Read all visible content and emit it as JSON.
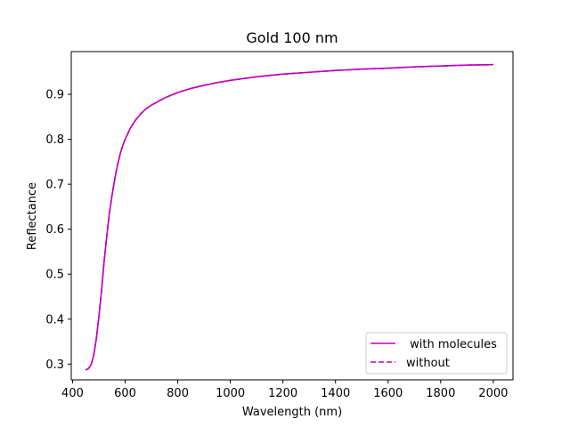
{
  "chart_data": {
    "type": "line",
    "title": "Gold 100 nm",
    "xlabel": "Wavelength (nm)",
    "ylabel": "Reflectance",
    "xlim": [
      395,
      2075
    ],
    "ylim": [
      0.265,
      0.995
    ],
    "xticks": [
      400,
      600,
      800,
      1000,
      1200,
      1400,
      1600,
      1800,
      2000
    ],
    "yticks": [
      0.3,
      0.4,
      0.5,
      0.6,
      0.7,
      0.8,
      0.9
    ],
    "grid": false,
    "legend_position": "lower-right",
    "series": [
      {
        "name": " with molecules",
        "style": "solid",
        "color": "#bf00bf",
        "x": [
          450,
          460,
          470,
          480,
          490,
          500,
          510,
          520,
          530,
          540,
          550,
          560,
          570,
          580,
          590,
          600,
          620,
          640,
          660,
          680,
          700,
          750,
          800,
          850,
          900,
          950,
          1000,
          1100,
          1200,
          1300,
          1400,
          1500,
          1600,
          1700,
          1800,
          1900,
          2000
        ],
        "y": [
          0.287,
          0.29,
          0.298,
          0.318,
          0.355,
          0.405,
          0.462,
          0.528,
          0.585,
          0.635,
          0.675,
          0.71,
          0.74,
          0.765,
          0.785,
          0.8,
          0.825,
          0.843,
          0.857,
          0.868,
          0.876,
          0.892,
          0.904,
          0.913,
          0.92,
          0.926,
          0.931,
          0.939,
          0.945,
          0.949,
          0.953,
          0.956,
          0.958,
          0.961,
          0.963,
          0.965,
          0.966
        ]
      },
      {
        "name": "without",
        "style": "dashed",
        "color": "#bf00bf",
        "x": [
          450,
          460,
          470,
          480,
          490,
          500,
          510,
          520,
          530,
          540,
          550,
          560,
          570,
          580,
          590,
          600,
          620,
          640,
          660,
          680,
          700,
          750,
          800,
          850,
          900,
          950,
          1000,
          1100,
          1200,
          1300,
          1400,
          1500,
          1600,
          1700,
          1800,
          1900,
          2000
        ],
        "y": [
          0.287,
          0.29,
          0.298,
          0.318,
          0.355,
          0.405,
          0.462,
          0.528,
          0.585,
          0.635,
          0.675,
          0.71,
          0.74,
          0.765,
          0.785,
          0.8,
          0.825,
          0.843,
          0.857,
          0.868,
          0.876,
          0.892,
          0.904,
          0.913,
          0.92,
          0.926,
          0.931,
          0.939,
          0.945,
          0.949,
          0.953,
          0.956,
          0.958,
          0.961,
          0.963,
          0.965,
          0.966
        ]
      }
    ]
  }
}
